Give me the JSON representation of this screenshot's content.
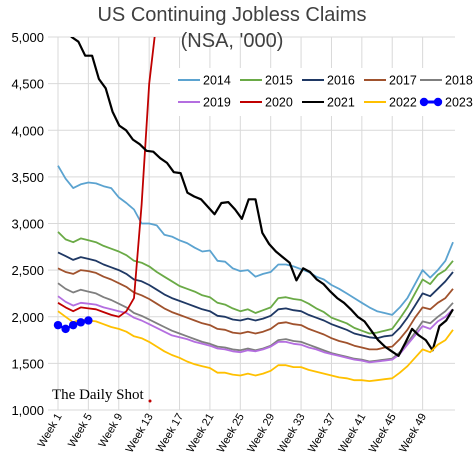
{
  "chart_data": {
    "type": "line",
    "title": "US Continuing Jobless Claims",
    "subtitle": "(NSA, '000)",
    "xlabel": "",
    "ylabel": "",
    "ylim": [
      1000,
      5000
    ],
    "yticks": [
      "1,000",
      "1,500",
      "2,000",
      "2,500",
      "3,000",
      "3,500",
      "4,000",
      "4,500",
      "5,000"
    ],
    "yticks_values": [
      1000,
      1500,
      2000,
      2500,
      3000,
      3500,
      4000,
      4500,
      5000
    ],
    "x_range": [
      1,
      53
    ],
    "xticks": [
      "Week 1",
      "Week 5",
      "Week 9",
      "Week 13",
      "Week 17",
      "Week 21",
      "Week 25",
      "Week 29",
      "Week 33",
      "Week 37",
      "Week 41",
      "Week 45",
      "Week 49"
    ],
    "xticks_values": [
      1,
      5,
      9,
      13,
      17,
      21,
      25,
      29,
      33,
      37,
      41,
      45,
      49
    ],
    "grid": true,
    "legend_position": "top-right",
    "brand_text": "The Daily Shot",
    "series": [
      {
        "name": "2014",
        "color": "#5ba3d0",
        "values": [
          3620,
          3480,
          3380,
          3420,
          3440,
          3430,
          3400,
          3380,
          3280,
          3220,
          3150,
          3000,
          3000,
          2980,
          2880,
          2860,
          2820,
          2790,
          2740,
          2700,
          2710,
          2600,
          2590,
          2520,
          2490,
          2500,
          2430,
          2460,
          2480,
          2560,
          2560,
          2540,
          2510,
          2480,
          2430,
          2400,
          2340,
          2300,
          2250,
          2200,
          2150,
          2100,
          2060,
          2040,
          2020,
          2100,
          2200,
          2350,
          2500,
          2420,
          2500,
          2600,
          2800
        ]
      },
      {
        "name": "2015",
        "color": "#6aaa46",
        "values": [
          2910,
          2830,
          2800,
          2840,
          2820,
          2800,
          2760,
          2730,
          2700,
          2660,
          2600,
          2580,
          2540,
          2480,
          2430,
          2380,
          2330,
          2300,
          2270,
          2230,
          2210,
          2150,
          2130,
          2090,
          2060,
          2080,
          2040,
          2070,
          2100,
          2200,
          2210,
          2190,
          2180,
          2140,
          2090,
          2050,
          1990,
          1960,
          1930,
          1880,
          1850,
          1820,
          1830,
          1850,
          1870,
          1980,
          2100,
          2250,
          2400,
          2350,
          2450,
          2500,
          2600
        ]
      },
      {
        "name": "2016",
        "color": "#1f3864",
        "values": [
          2690,
          2650,
          2610,
          2640,
          2620,
          2600,
          2560,
          2530,
          2500,
          2460,
          2400,
          2380,
          2340,
          2290,
          2240,
          2200,
          2170,
          2140,
          2110,
          2080,
          2060,
          2010,
          2000,
          1970,
          1960,
          1980,
          1960,
          1980,
          2010,
          2080,
          2090,
          2070,
          2060,
          2020,
          1990,
          1960,
          1920,
          1890,
          1860,
          1820,
          1800,
          1780,
          1770,
          1790,
          1800,
          1880,
          1990,
          2120,
          2250,
          2220,
          2300,
          2380,
          2480
        ]
      },
      {
        "name": "2017",
        "color": "#a0522d",
        "values": [
          2520,
          2480,
          2460,
          2500,
          2490,
          2470,
          2430,
          2400,
          2360,
          2320,
          2260,
          2230,
          2190,
          2140,
          2090,
          2050,
          2020,
          1990,
          1960,
          1930,
          1910,
          1870,
          1860,
          1830,
          1820,
          1840,
          1820,
          1840,
          1870,
          1930,
          1940,
          1920,
          1910,
          1870,
          1840,
          1810,
          1770,
          1740,
          1720,
          1690,
          1670,
          1650,
          1650,
          1670,
          1680,
          1760,
          1860,
          1990,
          2100,
          2080,
          2150,
          2200,
          2300
        ]
      },
      {
        "name": "2018",
        "color": "#7f7f7f",
        "values": [
          2360,
          2300,
          2260,
          2290,
          2270,
          2250,
          2210,
          2180,
          2140,
          2100,
          2040,
          2010,
          1970,
          1930,
          1890,
          1850,
          1820,
          1790,
          1760,
          1730,
          1710,
          1680,
          1670,
          1650,
          1640,
          1660,
          1640,
          1660,
          1690,
          1750,
          1760,
          1740,
          1730,
          1700,
          1670,
          1640,
          1610,
          1590,
          1570,
          1550,
          1540,
          1520,
          1530,
          1540,
          1550,
          1620,
          1720,
          1830,
          1950,
          1930,
          2000,
          2060,
          2150
        ]
      },
      {
        "name": "2019",
        "color": "#b46ee0",
        "values": [
          2220,
          2160,
          2120,
          2150,
          2140,
          2130,
          2100,
          2080,
          2060,
          2040,
          1990,
          1960,
          1920,
          1880,
          1840,
          1800,
          1780,
          1760,
          1730,
          1710,
          1690,
          1660,
          1650,
          1630,
          1620,
          1640,
          1630,
          1650,
          1680,
          1730,
          1730,
          1710,
          1700,
          1670,
          1650,
          1620,
          1600,
          1580,
          1560,
          1540,
          1530,
          1510,
          1520,
          1530,
          1540,
          1600,
          1700,
          1800,
          1900,
          1870,
          1950,
          2000,
          2080
        ]
      },
      {
        "name": "2020",
        "color": "#c00000",
        "values": [
          2150,
          2100,
          2060,
          2100,
          2090,
          2080,
          2050,
          2020,
          2000,
          2060,
          2200,
          3200,
          4500,
          5200
        ]
      },
      {
        "name": "2021",
        "color": "#000000",
        "values": [
          5200,
          5100,
          5000,
          4950,
          4800,
          4800,
          4550,
          4450,
          4200,
          4050,
          4000,
          3900,
          3850,
          3780,
          3770,
          3700,
          3650,
          3550,
          3540,
          3330,
          3290,
          3260,
          3180,
          3100,
          3220,
          3230,
          3150,
          3050,
          3260,
          3260,
          2900,
          2780,
          2700,
          2640,
          2580,
          2390,
          2520,
          2480,
          2400,
          2350,
          2270,
          2200,
          2150,
          2080,
          2000,
          1950,
          1850,
          1750,
          1680,
          1630,
          1580,
          1720,
          1870,
          1800,
          1750,
          1640,
          1900,
          1960,
          2080
        ]
      },
      {
        "name": "2022",
        "color": "#ffc000",
        "values": [
          2060,
          2000,
          1940,
          1970,
          1960,
          1950,
          1920,
          1890,
          1870,
          1840,
          1790,
          1770,
          1730,
          1680,
          1630,
          1590,
          1560,
          1520,
          1490,
          1470,
          1450,
          1400,
          1400,
          1380,
          1370,
          1390,
          1370,
          1390,
          1420,
          1480,
          1480,
          1460,
          1460,
          1430,
          1410,
          1390,
          1370,
          1350,
          1340,
          1320,
          1320,
          1310,
          1320,
          1330,
          1340,
          1400,
          1470,
          1560,
          1650,
          1620,
          1700,
          1750,
          1860
        ]
      },
      {
        "name": "2023",
        "color": "#0000ff",
        "values": [
          1910,
          1870,
          1910,
          1940,
          1960
        ]
      }
    ]
  }
}
